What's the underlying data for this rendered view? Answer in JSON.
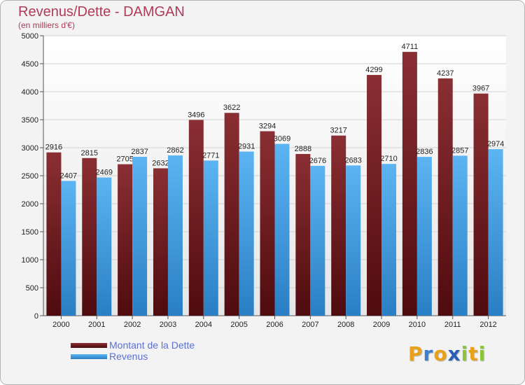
{
  "chart_data": {
    "type": "bar",
    "title": "Revenus/Dette - DAMGAN",
    "subtitle": "(en milliers d'€)",
    "xlabel": "",
    "ylabel": "",
    "ylim": [
      0,
      5000
    ],
    "yticks": [
      0,
      500,
      1000,
      1500,
      2000,
      2500,
      3000,
      3500,
      4000,
      4500,
      5000
    ],
    "grid": true,
    "legend_position": "bottom-left",
    "categories": [
      "2000",
      "2001",
      "2002",
      "2003",
      "2004",
      "2005",
      "2006",
      "2007",
      "2008",
      "2009",
      "2010",
      "2011",
      "2012"
    ],
    "series": [
      {
        "name": "Montant de la Dette",
        "color": "#7a2326",
        "values": [
          2916,
          2815,
          2705,
          2632,
          3496,
          3622,
          3294,
          2888,
          3217,
          4299,
          4711,
          4237,
          3967
        ]
      },
      {
        "name": "Revenus",
        "color": "#4ea6e6",
        "values": [
          2407,
          2469,
          2837,
          2862,
          2771,
          2931,
          3069,
          2676,
          2683,
          2710,
          2836,
          2857,
          2974
        ]
      }
    ]
  },
  "logo": {
    "letters": [
      "P",
      "r",
      "o",
      "x",
      "i",
      "t",
      "i"
    ],
    "colors": [
      "#e8a21a",
      "#3b7fd0",
      "#e8a21a",
      "#2a5fb8",
      "#8cc43a",
      "#e8a21a",
      "#8cc43a"
    ]
  }
}
